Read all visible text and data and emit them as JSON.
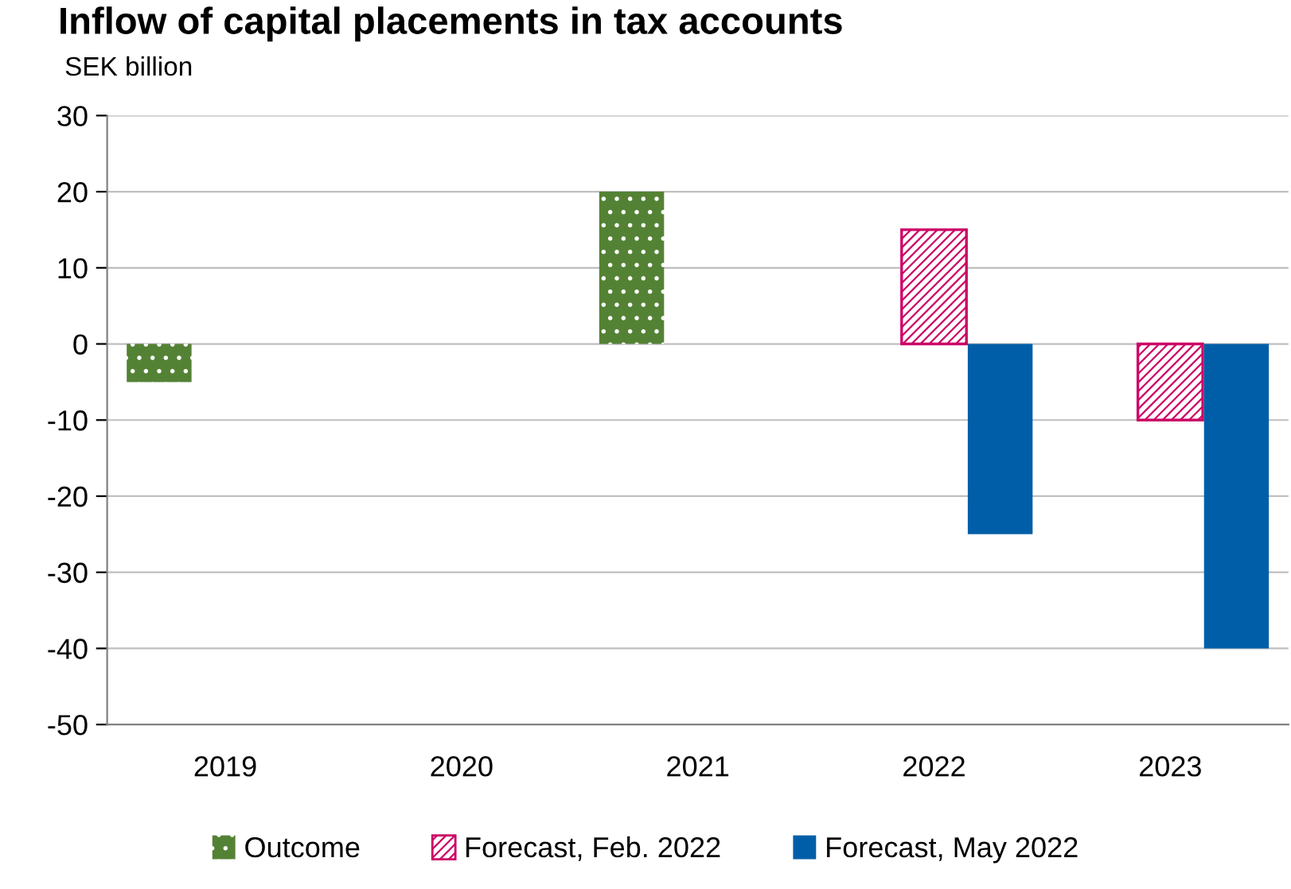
{
  "chart_data": {
    "type": "bar",
    "title": "Inflow of capital placements in tax accounts",
    "subtitle": "SEK billion",
    "categories": [
      "2019",
      "2020",
      "2021",
      "2022",
      "2023"
    ],
    "series": [
      {
        "name": "Outcome",
        "color": "#548235",
        "values": [
          -5,
          null,
          20,
          null,
          null
        ]
      },
      {
        "name": "Forecast, Feb. 2022",
        "color": "#cc0066",
        "values": [
          null,
          null,
          null,
          15,
          -10
        ]
      },
      {
        "name": "Forecast, May 2022",
        "color": "#005ea8",
        "values": [
          null,
          null,
          null,
          -25,
          -40
        ]
      }
    ],
    "ylim": [
      -50,
      30
    ],
    "yticks": [
      -50,
      -40,
      -30,
      -20,
      -10,
      0,
      10,
      20,
      30
    ],
    "grid": "y",
    "legend": "bottom"
  }
}
